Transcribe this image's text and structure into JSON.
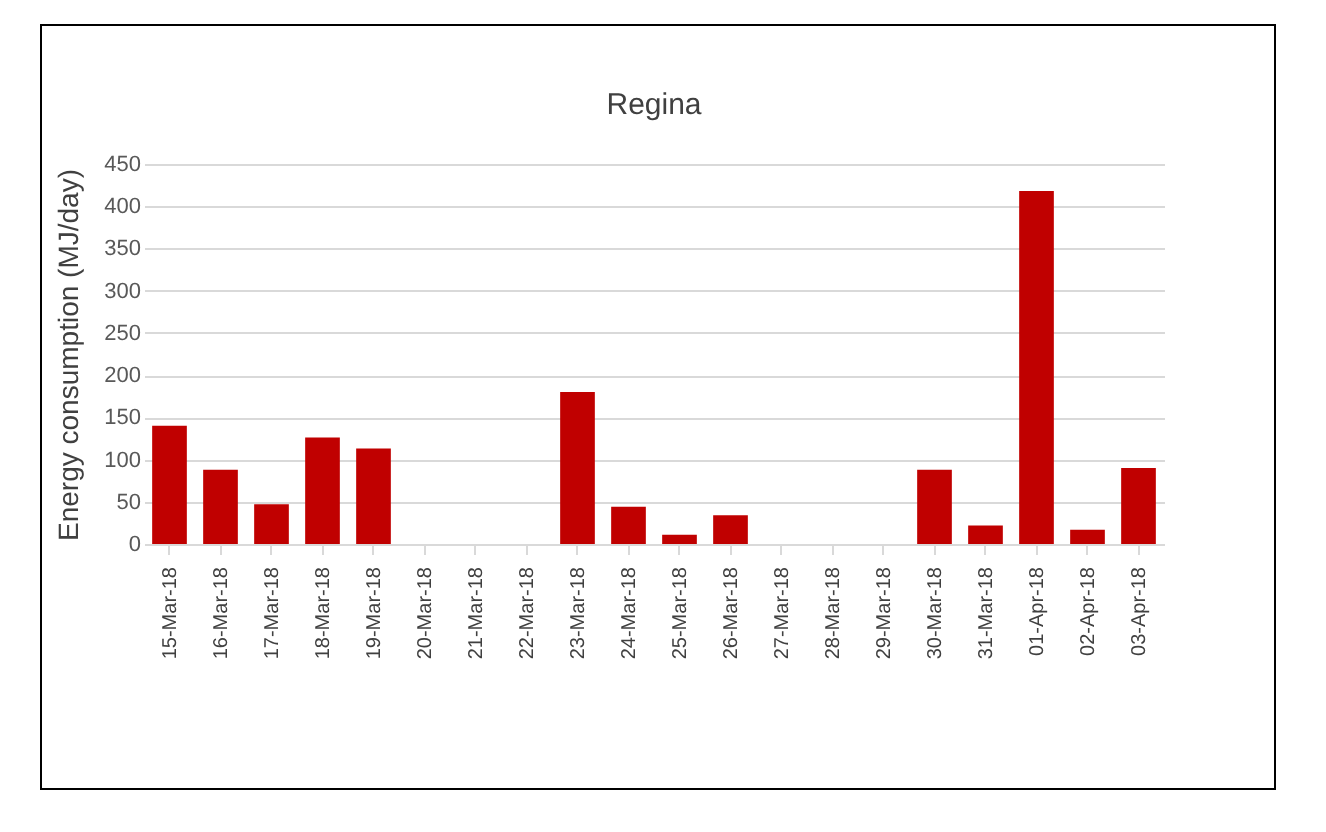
{
  "chart_data": {
    "type": "bar",
    "title": "Regina",
    "ylabel": "Energy consumption (MJ/day)",
    "categories": [
      "15-Mar-18",
      "16-Mar-18",
      "17-Mar-18",
      "18-Mar-18",
      "19-Mar-18",
      "20-Mar-18",
      "21-Mar-18",
      "22-Mar-18",
      "23-Mar-18",
      "24-Mar-18",
      "25-Mar-18",
      "26-Mar-18",
      "27-Mar-18",
      "28-Mar-18",
      "29-Mar-18",
      "30-Mar-18",
      "31-Mar-18",
      "01-Apr-18",
      "02-Apr-18",
      "03-Apr-18"
    ],
    "values": [
      140,
      88,
      47,
      126,
      113,
      0,
      0,
      0,
      180,
      44,
      11,
      34,
      0,
      0,
      0,
      88,
      22,
      418,
      17,
      90
    ],
    "color": "#c00000",
    "ylim": [
      0,
      450
    ],
    "yticks": [
      0,
      50,
      100,
      150,
      200,
      250,
      300,
      350,
      400,
      450
    ],
    "grid": "y"
  }
}
